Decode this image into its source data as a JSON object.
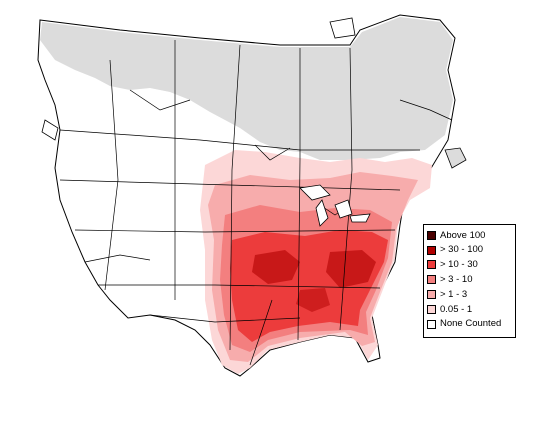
{
  "map": {
    "colors": {
      "no_data": "#dcdcdc",
      "none_counted": "#ffffff",
      "outline": "#000000"
    }
  },
  "legend": {
    "items": [
      {
        "label": "Above 100",
        "color": "#4a0000"
      },
      {
        "label": "> 30 - 100",
        "color": "#b00000"
      },
      {
        "label": "> 10 - 30",
        "color": "#ec3c3c"
      },
      {
        "label": "> 3 - 10",
        "color": "#f37f7f"
      },
      {
        "label": "> 1 - 3",
        "color": "#f7acac"
      },
      {
        "label": "0.05 - 1",
        "color": "#fcd7d7"
      },
      {
        "label": "None Counted",
        "color": "#ffffff"
      }
    ]
  }
}
